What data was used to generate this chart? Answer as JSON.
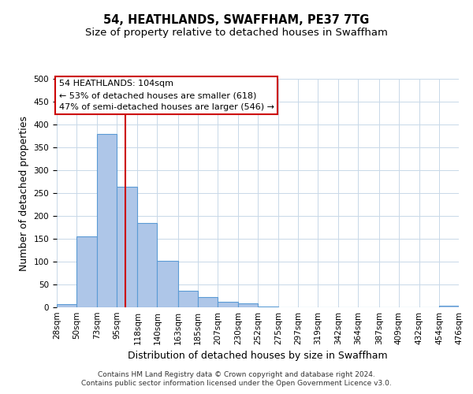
{
  "title": "54, HEATHLANDS, SWAFFHAM, PE37 7TG",
  "subtitle": "Size of property relative to detached houses in Swaffham",
  "xlabel": "Distribution of detached houses by size in Swaffham",
  "ylabel": "Number of detached properties",
  "bin_edges": [
    28,
    50,
    73,
    95,
    118,
    140,
    163,
    185,
    207,
    230,
    252,
    275,
    297,
    319,
    342,
    364,
    387,
    409,
    432,
    454,
    476
  ],
  "bar_heights": [
    7,
    155,
    380,
    263,
    184,
    101,
    36,
    22,
    12,
    9,
    2,
    0,
    0,
    0,
    0,
    0,
    0,
    0,
    0,
    4
  ],
  "bar_color": "#aec6e8",
  "bar_edgecolor": "#5b9bd5",
  "bar_linewidth": 0.8,
  "vline_x": 104,
  "vline_color": "#cc0000",
  "ylim": [
    0,
    500
  ],
  "yticks": [
    0,
    50,
    100,
    150,
    200,
    250,
    300,
    350,
    400,
    450,
    500
  ],
  "annotation_box_text": "54 HEATHLANDS: 104sqm\n← 53% of detached houses are smaller (618)\n47% of semi-detached houses are larger (546) →",
  "footer_line1": "Contains HM Land Registry data © Crown copyright and database right 2024.",
  "footer_line2": "Contains public sector information licensed under the Open Government Licence v3.0.",
  "background_color": "#ffffff",
  "grid_color": "#c8d8e8",
  "title_fontsize": 10.5,
  "subtitle_fontsize": 9.5,
  "axis_label_fontsize": 9,
  "tick_label_fontsize": 7.5,
  "annotation_fontsize": 8,
  "footer_fontsize": 6.5
}
